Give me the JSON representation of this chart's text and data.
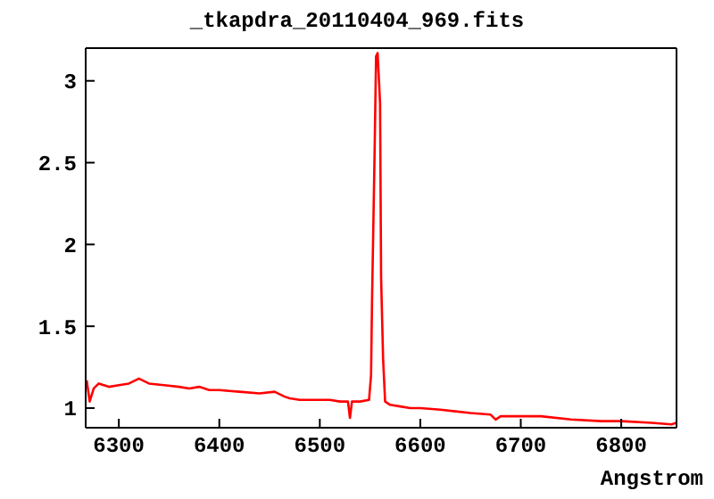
{
  "chart_data": {
    "type": "line",
    "title": "_tkapdra_20110404_969.fits",
    "xlabel": "Angstrom",
    "x": [
      6268,
      6271,
      6275,
      6280,
      6290,
      6300,
      6310,
      6320,
      6330,
      6345,
      6360,
      6370,
      6380,
      6390,
      6400,
      6420,
      6440,
      6455,
      6465,
      6470,
      6480,
      6490,
      6500,
      6510,
      6520,
      6528,
      6530,
      6532,
      6540,
      6549,
      6551,
      6552,
      6554.5,
      6556,
      6557.5,
      6558.5,
      6560,
      6561,
      6563,
      6565,
      6570,
      6580,
      6590,
      6600,
      6620,
      6650,
      6670,
      6675,
      6680,
      6700,
      6720,
      6750,
      6780,
      6800,
      6830,
      6850,
      6855
    ],
    "series": [
      {
        "color": "#ff0000",
        "values": [
          1.17,
          1.04,
          1.12,
          1.15,
          1.13,
          1.14,
          1.15,
          1.18,
          1.15,
          1.14,
          1.13,
          1.12,
          1.13,
          1.11,
          1.11,
          1.1,
          1.09,
          1.1,
          1.07,
          1.06,
          1.05,
          1.05,
          1.05,
          1.05,
          1.04,
          1.04,
          0.94,
          1.04,
          1.04,
          1.05,
          1.2,
          1.66,
          2.55,
          3.15,
          3.17,
          3.05,
          2.86,
          1.8,
          1.3,
          1.04,
          1.02,
          1.01,
          1.0,
          1.0,
          0.99,
          0.97,
          0.96,
          0.93,
          0.95,
          0.95,
          0.95,
          0.93,
          0.92,
          0.92,
          0.91,
          0.9,
          0.91
        ]
      }
    ],
    "xlim": [
      6267,
      6855
    ],
    "xticks": [
      6300,
      6400,
      6500,
      6600,
      6700,
      6800
    ],
    "ylim": [
      0.88,
      3.2
    ],
    "yticks": [
      1,
      1.5,
      2,
      2.5,
      3
    ],
    "marker": "none",
    "line_style": "solid"
  }
}
